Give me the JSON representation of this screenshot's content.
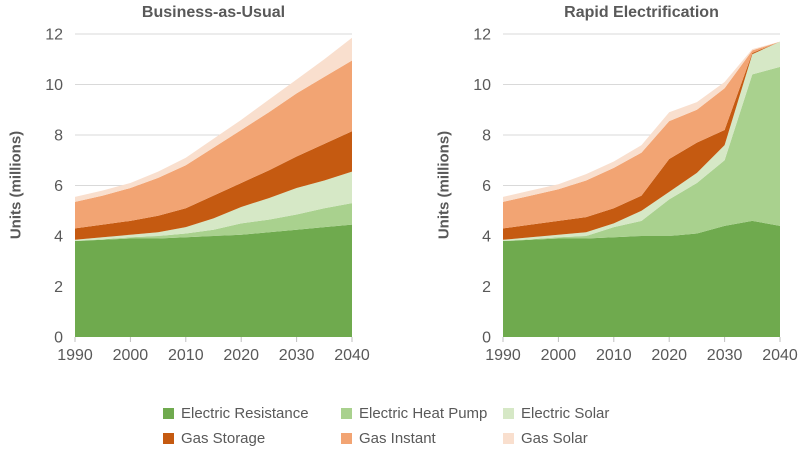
{
  "chart_data": [
    {
      "type": "area",
      "stacked": true,
      "title": "Business-as-Usual",
      "xlabel": "",
      "ylabel": "Units (millions)",
      "x": [
        1990,
        1995,
        2000,
        2005,
        2010,
        2015,
        2020,
        2025,
        2030,
        2035,
        2040
      ],
      "xticks": [
        1990,
        2000,
        2010,
        2020,
        2030,
        2040
      ],
      "yticks": [
        0,
        2,
        4,
        6,
        8,
        10,
        12
      ],
      "ylim": [
        0,
        12
      ],
      "grid": "horizontal",
      "series": [
        {
          "name": "Electric Resistance",
          "color": "#6FAA4E",
          "values": [
            3.8,
            3.85,
            3.9,
            3.9,
            3.95,
            4.0,
            4.05,
            4.15,
            4.25,
            4.35,
            4.45
          ]
        },
        {
          "name": "Electric Heat Pump",
          "color": "#A9D18E",
          "values": [
            0.0,
            0.02,
            0.05,
            0.1,
            0.15,
            0.25,
            0.45,
            0.5,
            0.6,
            0.75,
            0.85
          ]
        },
        {
          "name": "Electric Solar",
          "color": "#D6E8C6",
          "values": [
            0.05,
            0.08,
            0.1,
            0.15,
            0.25,
            0.45,
            0.65,
            0.85,
            1.05,
            1.1,
            1.25
          ]
        },
        {
          "name": "Gas Storage",
          "color": "#C55A11",
          "values": [
            0.45,
            0.5,
            0.55,
            0.65,
            0.75,
            0.9,
            0.95,
            1.1,
            1.25,
            1.45,
            1.6
          ]
        },
        {
          "name": "Gas Instant",
          "color": "#F2A473",
          "values": [
            1.05,
            1.15,
            1.3,
            1.5,
            1.7,
            1.9,
            2.1,
            2.3,
            2.5,
            2.65,
            2.8
          ]
        },
        {
          "name": "Gas Solar",
          "color": "#F9DFCE",
          "values": [
            0.2,
            0.2,
            0.2,
            0.25,
            0.3,
            0.35,
            0.4,
            0.5,
            0.55,
            0.7,
            0.9
          ]
        }
      ]
    },
    {
      "type": "area",
      "stacked": true,
      "title": "Rapid Electrification",
      "xlabel": "",
      "ylabel": "Units (millions)",
      "x": [
        1990,
        1995,
        2000,
        2005,
        2010,
        2015,
        2020,
        2025,
        2030,
        2035,
        2040
      ],
      "xticks": [
        1990,
        2000,
        2010,
        2020,
        2030,
        2040
      ],
      "yticks": [
        0,
        2,
        4,
        6,
        8,
        10,
        12
      ],
      "ylim": [
        0,
        12
      ],
      "grid": "horizontal",
      "series": [
        {
          "name": "Electric Resistance",
          "color": "#6FAA4E",
          "values": [
            3.8,
            3.85,
            3.9,
            3.9,
            3.95,
            4.0,
            4.0,
            4.1,
            4.4,
            4.6,
            4.4
          ]
        },
        {
          "name": "Electric Heat Pump",
          "color": "#A9D18E",
          "values": [
            0.0,
            0.02,
            0.05,
            0.1,
            0.4,
            0.6,
            1.45,
            2.0,
            2.6,
            5.8,
            6.3
          ]
        },
        {
          "name": "Electric Solar",
          "color": "#D6E8C6",
          "values": [
            0.05,
            0.08,
            0.1,
            0.15,
            0.15,
            0.4,
            0.3,
            0.4,
            0.6,
            0.8,
            1.0
          ]
        },
        {
          "name": "Gas Storage",
          "color": "#C55A11",
          "values": [
            0.45,
            0.5,
            0.55,
            0.6,
            0.6,
            0.6,
            1.3,
            1.2,
            0.6,
            0.05,
            0.0
          ]
        },
        {
          "name": "Gas Instant",
          "color": "#F2A473",
          "values": [
            1.05,
            1.15,
            1.25,
            1.45,
            1.6,
            1.7,
            1.5,
            1.3,
            1.65,
            0.1,
            0.0
          ]
        },
        {
          "name": "Gas Solar",
          "color": "#F9DFCE",
          "values": [
            0.2,
            0.2,
            0.2,
            0.25,
            0.25,
            0.3,
            0.35,
            0.3,
            0.25,
            0.05,
            0.0
          ]
        }
      ]
    }
  ],
  "legend": {
    "items": [
      {
        "label": "Electric Resistance",
        "color": "#6FAA4E"
      },
      {
        "label": "Electric Heat Pump",
        "color": "#A9D18E"
      },
      {
        "label": "Electric Solar",
        "color": "#D6E8C6"
      },
      {
        "label": "Gas Storage",
        "color": "#C55A11"
      },
      {
        "label": "Gas Instant",
        "color": "#F2A473"
      },
      {
        "label": "Gas Solar",
        "color": "#F9DFCE"
      }
    ]
  },
  "colors": {
    "text": "#595959",
    "gridline": "#d9d9d9",
    "tick": "#bfbfbf",
    "background": "#ffffff"
  }
}
